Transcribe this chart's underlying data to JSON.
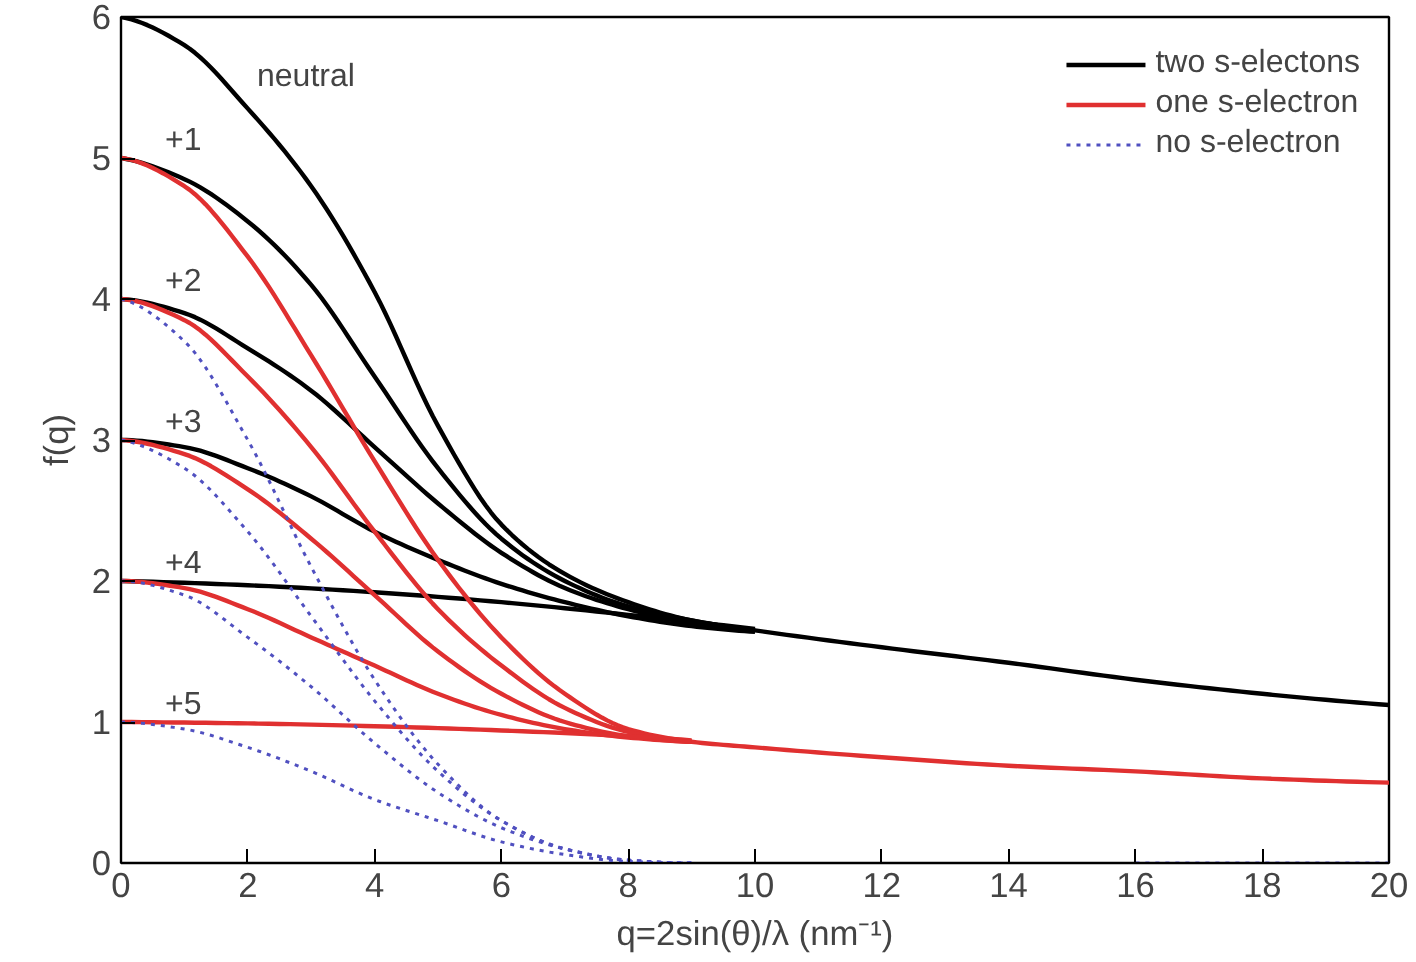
{
  "chart_data": {
    "type": "line",
    "xlabel": "q=2sin(θ)/λ (nm⁻¹)",
    "ylabel": "f(q)",
    "xlim": [
      0,
      20
    ],
    "ylim": [
      0,
      6
    ],
    "xticks": [
      0,
      2,
      4,
      6,
      8,
      10,
      12,
      14,
      16,
      18,
      20
    ],
    "yticks": [
      0,
      1,
      2,
      3,
      4,
      5,
      6
    ],
    "grid": false,
    "legend": "top right",
    "marker": "none",
    "series": [
      {
        "name": "two s-electons",
        "color": "#000000",
        "line_style": "solid",
        "x": [
          0,
          1,
          2,
          3,
          4,
          5,
          6,
          7,
          8,
          9,
          10,
          12,
          14,
          16,
          18,
          20
        ],
        "values": [
          6,
          5.8,
          5.35,
          4.8,
          4.05,
          3.1,
          2.4,
          2.05,
          1.85,
          1.72,
          1.65,
          1.53,
          1.42,
          1.3,
          1.2,
          1.12
        ]
      },
      {
        "color": "#000000",
        "line_style": "solid",
        "x": [
          0,
          1,
          2,
          3,
          4,
          5,
          6,
          7,
          8,
          9,
          10
        ],
        "values": [
          5,
          4.85,
          4.55,
          4.1,
          3.45,
          2.8,
          2.3,
          2.0,
          1.82,
          1.72,
          1.65
        ]
      },
      {
        "color": "#000000",
        "line_style": "solid",
        "x": [
          0,
          1,
          2,
          3,
          4,
          5,
          6,
          7,
          8,
          9,
          10
        ],
        "values": [
          4,
          3.9,
          3.65,
          3.35,
          2.95,
          2.55,
          2.2,
          1.95,
          1.8,
          1.7,
          1.65
        ]
      },
      {
        "color": "#000000",
        "line_style": "solid",
        "x": [
          0,
          1,
          2,
          3,
          4,
          5,
          6,
          7,
          8,
          9,
          10
        ],
        "values": [
          3,
          2.95,
          2.8,
          2.6,
          2.35,
          2.15,
          1.98,
          1.85,
          1.75,
          1.68,
          1.64
        ]
      },
      {
        "color": "#000000",
        "line_style": "solid",
        "x": [
          0,
          2,
          4,
          6,
          8,
          10
        ],
        "values": [
          2,
          1.97,
          1.92,
          1.85,
          1.76,
          1.66
        ]
      },
      {
        "name": "one s-electron",
        "color": "#e03030",
        "line_style": "solid",
        "x": [
          0,
          1,
          2,
          3,
          4,
          5,
          6,
          7,
          8,
          9,
          10,
          12,
          14,
          16,
          18,
          20
        ],
        "values": [
          5,
          4.8,
          4.3,
          3.6,
          2.85,
          2.15,
          1.6,
          1.2,
          0.95,
          0.86,
          0.82,
          0.75,
          0.69,
          0.65,
          0.6,
          0.57
        ]
      },
      {
        "color": "#e03030",
        "line_style": "solid",
        "x": [
          0,
          1,
          2,
          3,
          4,
          5,
          6,
          7,
          8,
          9
        ],
        "values": [
          4,
          3.85,
          3.45,
          2.95,
          2.35,
          1.8,
          1.4,
          1.1,
          0.93,
          0.86
        ]
      },
      {
        "color": "#e03030",
        "line_style": "solid",
        "x": [
          0,
          1,
          2,
          3,
          4,
          5,
          6,
          7,
          8,
          9
        ],
        "values": [
          3,
          2.9,
          2.65,
          2.3,
          1.9,
          1.5,
          1.2,
          1.0,
          0.9,
          0.86
        ]
      },
      {
        "color": "#e03030",
        "line_style": "solid",
        "x": [
          0,
          1,
          2,
          3,
          4,
          5,
          6,
          7,
          8,
          9
        ],
        "values": [
          2,
          1.95,
          1.8,
          1.6,
          1.4,
          1.2,
          1.05,
          0.95,
          0.89,
          0.86
        ]
      },
      {
        "color": "#e03030",
        "line_style": "solid",
        "x": [
          0,
          2,
          4,
          6,
          8,
          9
        ],
        "values": [
          1,
          0.99,
          0.97,
          0.94,
          0.9,
          0.87
        ]
      },
      {
        "name": "no s-electron",
        "color": "#5050c0",
        "line_style": "dotted",
        "x": [
          0,
          1,
          2,
          3,
          4,
          5,
          6,
          7,
          8,
          9,
          12,
          16,
          18,
          20
        ],
        "values": [
          4,
          3.7,
          3.0,
          2.1,
          1.3,
          0.7,
          0.3,
          0.1,
          0.02,
          0,
          null,
          0,
          0,
          0
        ]
      },
      {
        "color": "#5050c0",
        "line_style": "dotted",
        "x": [
          0,
          1,
          2,
          3,
          4,
          5,
          6,
          7,
          8,
          9
        ],
        "values": [
          3,
          2.8,
          2.35,
          1.75,
          1.15,
          0.65,
          0.3,
          0.1,
          0.02,
          0
        ]
      },
      {
        "color": "#5050c0",
        "line_style": "dotted",
        "x": [
          0,
          1,
          2,
          3,
          4,
          5,
          6,
          7,
          8,
          9
        ],
        "values": [
          2,
          1.9,
          1.6,
          1.25,
          0.85,
          0.5,
          0.25,
          0.1,
          0.02,
          0
        ]
      },
      {
        "color": "#5050c0",
        "line_style": "dotted",
        "x": [
          0,
          1,
          2,
          3,
          4,
          5,
          6,
          7,
          8,
          9
        ],
        "values": [
          1,
          0.95,
          0.82,
          0.65,
          0.45,
          0.3,
          0.15,
          0.06,
          0.01,
          0
        ]
      }
    ],
    "annotations": [
      "neutral",
      "+1",
      "+2",
      "+3",
      "+4",
      "+5"
    ]
  }
}
